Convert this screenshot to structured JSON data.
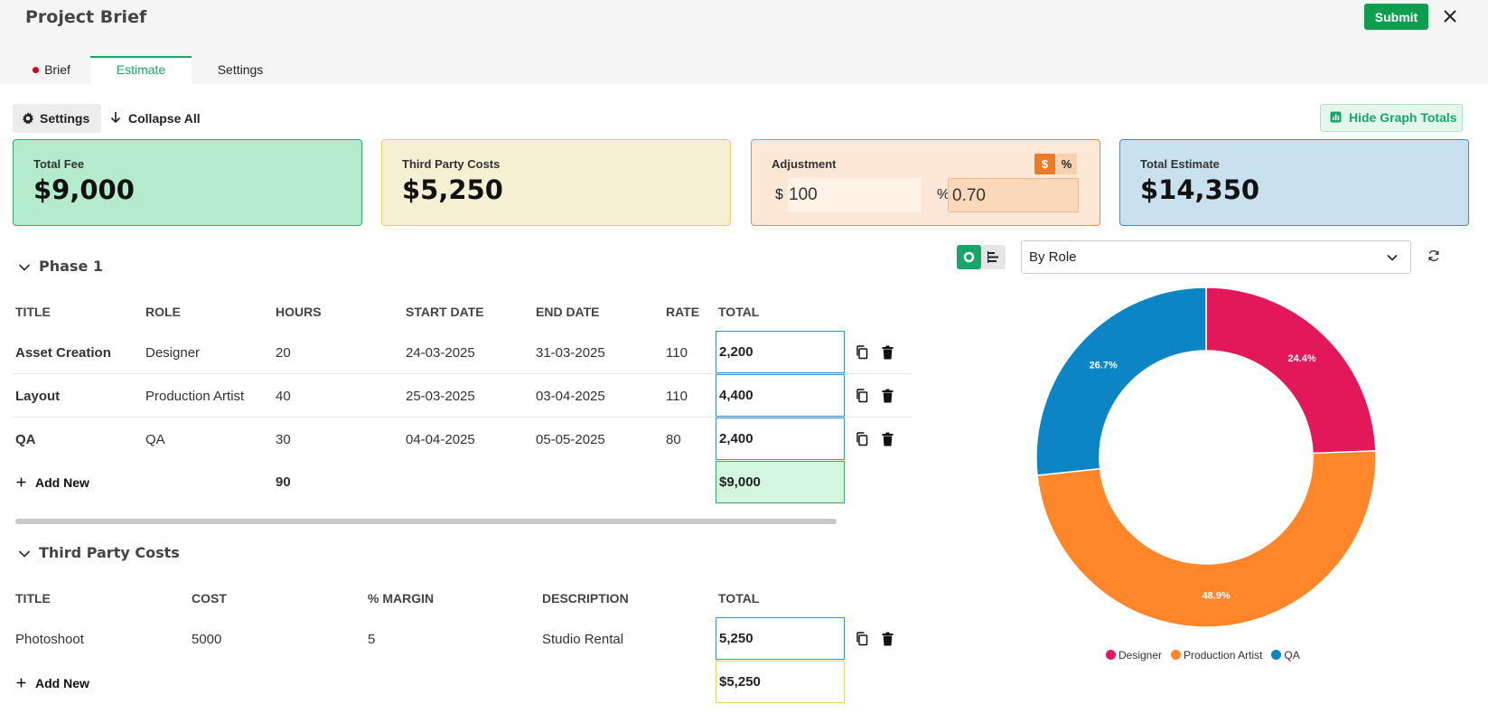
{
  "app": {
    "title": "Project Brief",
    "submit_label": "Submit",
    "close_icon": "close-icon"
  },
  "tabs": [
    {
      "label": "Brief",
      "alert": true
    },
    {
      "label": "Estimate",
      "active": true
    },
    {
      "label": "Settings"
    }
  ],
  "toolbar": {
    "settings_label": "Settings",
    "collapse_label": "Collapse All",
    "hide_graph_label": "Hide Graph Totals"
  },
  "cards": {
    "total_fee": {
      "label": "Total Fee",
      "value": "$9,000"
    },
    "third_party": {
      "label": "Third Party Costs",
      "value": "$5,250"
    },
    "adjustment": {
      "label": "Adjustment",
      "dollar_toggle": "$",
      "percent_toggle": "%",
      "dollar_prefix": "$",
      "dollar_value": "100",
      "percent_prefix": "%",
      "percent_value": "0.70"
    },
    "total_estimate": {
      "label": "Total Estimate",
      "value": "$14,350"
    }
  },
  "phase1": {
    "title": "Phase 1",
    "headers": [
      "TITLE",
      "ROLE",
      "HOURS",
      "START DATE",
      "END DATE",
      "RATE",
      "TOTAL"
    ],
    "rows": [
      {
        "title": "Asset Creation",
        "role": "Designer",
        "hours": "20",
        "start": "24-03-2025",
        "end": "31-03-2025",
        "rate": "110",
        "total": "2,200"
      },
      {
        "title": "Layout",
        "role": "Production Artist",
        "hours": "40",
        "start": "25-03-2025",
        "end": "03-04-2025",
        "rate": "110",
        "total": "4,400"
      },
      {
        "title": "QA",
        "role": "QA",
        "hours": "30",
        "start": "04-04-2025",
        "end": "05-05-2025",
        "rate": "80",
        "total": "2,400"
      }
    ],
    "add_new": "Add New",
    "hours_total": "90",
    "grand_total": "$9,000"
  },
  "third_party": {
    "title": "Third Party Costs",
    "headers": [
      "TITLE",
      "COST",
      "% MARGIN",
      "DESCRIPTION",
      "TOTAL"
    ],
    "rows": [
      {
        "title": "Photoshoot",
        "cost": "5000",
        "margin": "5",
        "description": "Studio Rental",
        "total": "5,250"
      }
    ],
    "add_new": "Add New",
    "grand_total": "$5,250"
  },
  "chart_controls": {
    "group_by": "By Role"
  },
  "chart_data": {
    "type": "pie",
    "donut": true,
    "categories": [
      "Designer",
      "Production Artist",
      "QA"
    ],
    "values": [
      24.4,
      48.9,
      26.7
    ],
    "labels": [
      "24.4%",
      "48.9%",
      "26.7%"
    ],
    "colors": [
      "#e3185a",
      "#ff8629",
      "#0b85c3"
    ],
    "legend_position": "bottom"
  }
}
